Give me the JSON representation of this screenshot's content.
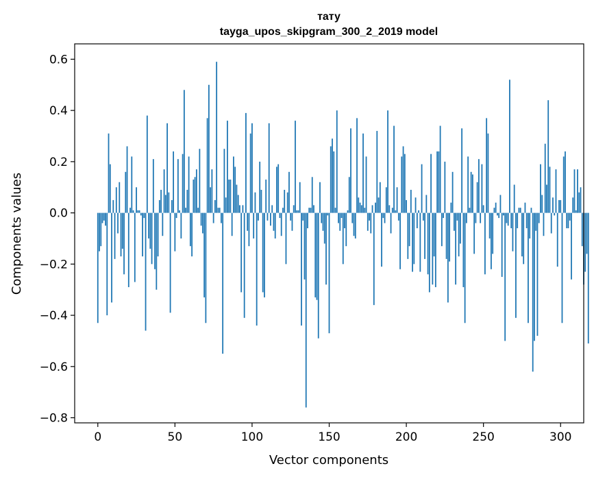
{
  "chart_data": {
    "type": "bar",
    "title": "тату",
    "subtitle": "tayga_upos_skipgram_300_2_2019 model",
    "xlabel": "Vector components",
    "ylabel": "Components values",
    "xlim": [
      -15,
      315
    ],
    "ylim": [
      -0.82,
      0.66
    ],
    "xticks": [
      0,
      50,
      100,
      150,
      200,
      250,
      300
    ],
    "xtick_labels": [
      "0",
      "50",
      "100",
      "150",
      "200",
      "250",
      "300"
    ],
    "yticks": [
      -0.8,
      -0.6,
      -0.4,
      -0.2,
      0.0,
      0.2,
      0.4,
      0.6
    ],
    "ytick_labels": [
      "−0.8",
      "−0.6",
      "−0.4",
      "−0.2",
      "0.0",
      "0.2",
      "0.4",
      "0.6"
    ],
    "bar_color": "#1f77b4",
    "grid": false,
    "series": [
      {
        "name": "тату",
        "values": [
          -0.43,
          -0.15,
          -0.13,
          -0.04,
          -0.03,
          -0.05,
          -0.4,
          0.31,
          0.19,
          -0.35,
          0.05,
          -0.18,
          0.1,
          -0.08,
          0.12,
          -0.17,
          -0.14,
          -0.24,
          0.16,
          0.26,
          -0.29,
          0.02,
          0.22,
          0.01,
          -0.27,
          0.1,
          0.01,
          0.01,
          -0.01,
          -0.17,
          -0.02,
          -0.46,
          0.38,
          -0.1,
          -0.14,
          -0.2,
          0.21,
          -0.22,
          -0.3,
          -0.17,
          0.05,
          0.09,
          -0.09,
          0.17,
          0.07,
          0.35,
          0.08,
          -0.39,
          0.05,
          0.24,
          -0.15,
          -0.02,
          0.21,
          0.01,
          -0.1,
          0.23,
          0.48,
          0.02,
          0.09,
          0.22,
          -0.13,
          -0.17,
          0.13,
          0.14,
          0.17,
          0.02,
          0.25,
          -0.05,
          -0.08,
          -0.33,
          -0.43,
          0.37,
          0.5,
          0.1,
          0.17,
          -0.04,
          0.05,
          0.59,
          0.02,
          0.02,
          -0.04,
          -0.55,
          0.25,
          0.06,
          0.36,
          0.13,
          0.13,
          -0.09,
          0.22,
          0.18,
          0.11,
          0.07,
          0.03,
          -0.31,
          0.03,
          -0.41,
          0.39,
          -0.07,
          -0.13,
          0.31,
          0.35,
          -0.1,
          0.08,
          -0.44,
          -0.03,
          0.2,
          0.09,
          -0.31,
          -0.33,
          0.13,
          -0.03,
          0.35,
          -0.05,
          0.03,
          -0.07,
          -0.1,
          0.18,
          0.19,
          -0.02,
          -0.09,
          0.02,
          0.09,
          -0.2,
          0.08,
          0.16,
          -0.03,
          -0.07,
          0.03,
          0.36,
          0.01,
          0.01,
          0.12,
          -0.44,
          -0.03,
          -0.26,
          -0.76,
          -0.06,
          0.02,
          0.02,
          0.14,
          0.03,
          -0.33,
          -0.34,
          -0.49,
          0.12,
          -0.04,
          -0.07,
          -0.12,
          -0.28,
          -0.01,
          -0.47,
          0.26,
          0.29,
          0.24,
          0.02,
          0.4,
          -0.04,
          -0.07,
          -0.02,
          -0.2,
          -0.06,
          -0.13,
          0.01,
          0.14,
          0.33,
          -0.04,
          -0.09,
          -0.1,
          0.37,
          0.06,
          0.04,
          0.03,
          0.31,
          0.02,
          0.22,
          -0.07,
          -0.03,
          -0.08,
          0.03,
          -0.36,
          0.04,
          0.32,
          0.06,
          0.12,
          -0.21,
          -0.02,
          -0.04,
          0.1,
          0.4,
          0.03,
          -0.08,
          0.02,
          0.34,
          0.01,
          0.1,
          -0.03,
          -0.22,
          0.22,
          0.26,
          0.23,
          0.05,
          -0.18,
          -0.13,
          0.09,
          -0.23,
          -0.2,
          0.06,
          -0.06,
          0.01,
          -0.23,
          0.19,
          -0.03,
          -0.18,
          0.07,
          -0.24,
          -0.31,
          0.23,
          -0.28,
          -0.17,
          -0.29,
          0.24,
          0.24,
          0.34,
          -0.13,
          -0.02,
          0.2,
          -0.18,
          -0.35,
          -0.19,
          0.04,
          0.16,
          -0.07,
          -0.28,
          -0.03,
          -0.17,
          -0.12,
          0.33,
          -0.29,
          -0.43,
          -0.04,
          0.22,
          0.02,
          0.16,
          0.15,
          -0.16,
          -0.04,
          0.12,
          0.21,
          -0.04,
          0.19,
          0.03,
          -0.24,
          0.37,
          0.31,
          -0.1,
          -0.22,
          -0.16,
          0.02,
          0.04,
          -0.01,
          -0.02,
          0.07,
          -0.25,
          -0.01,
          -0.5,
          -0.04,
          -0.05,
          0.52,
          -0.06,
          -0.15,
          0.11,
          -0.41,
          -0.06,
          0.02,
          0.02,
          -0.17,
          -0.2,
          0.04,
          -0.06,
          -0.43,
          -0.1,
          0.02,
          -0.62,
          -0.5,
          -0.07,
          -0.48,
          -0.04,
          0.19,
          0.07,
          -0.09,
          0.27,
          0.11,
          0.44,
          0.18,
          -0.08,
          0.06,
          -0.01,
          0.17,
          -0.21,
          0.05,
          0.05,
          -0.43,
          0.22,
          0.24,
          -0.06,
          -0.06,
          -0.03,
          -0.26,
          0.06,
          0.17,
          0.01,
          0.17,
          0.08,
          0.1,
          -0.13,
          -0.28,
          -0.23,
          -0.16,
          -0.51
        ]
      }
    ]
  }
}
